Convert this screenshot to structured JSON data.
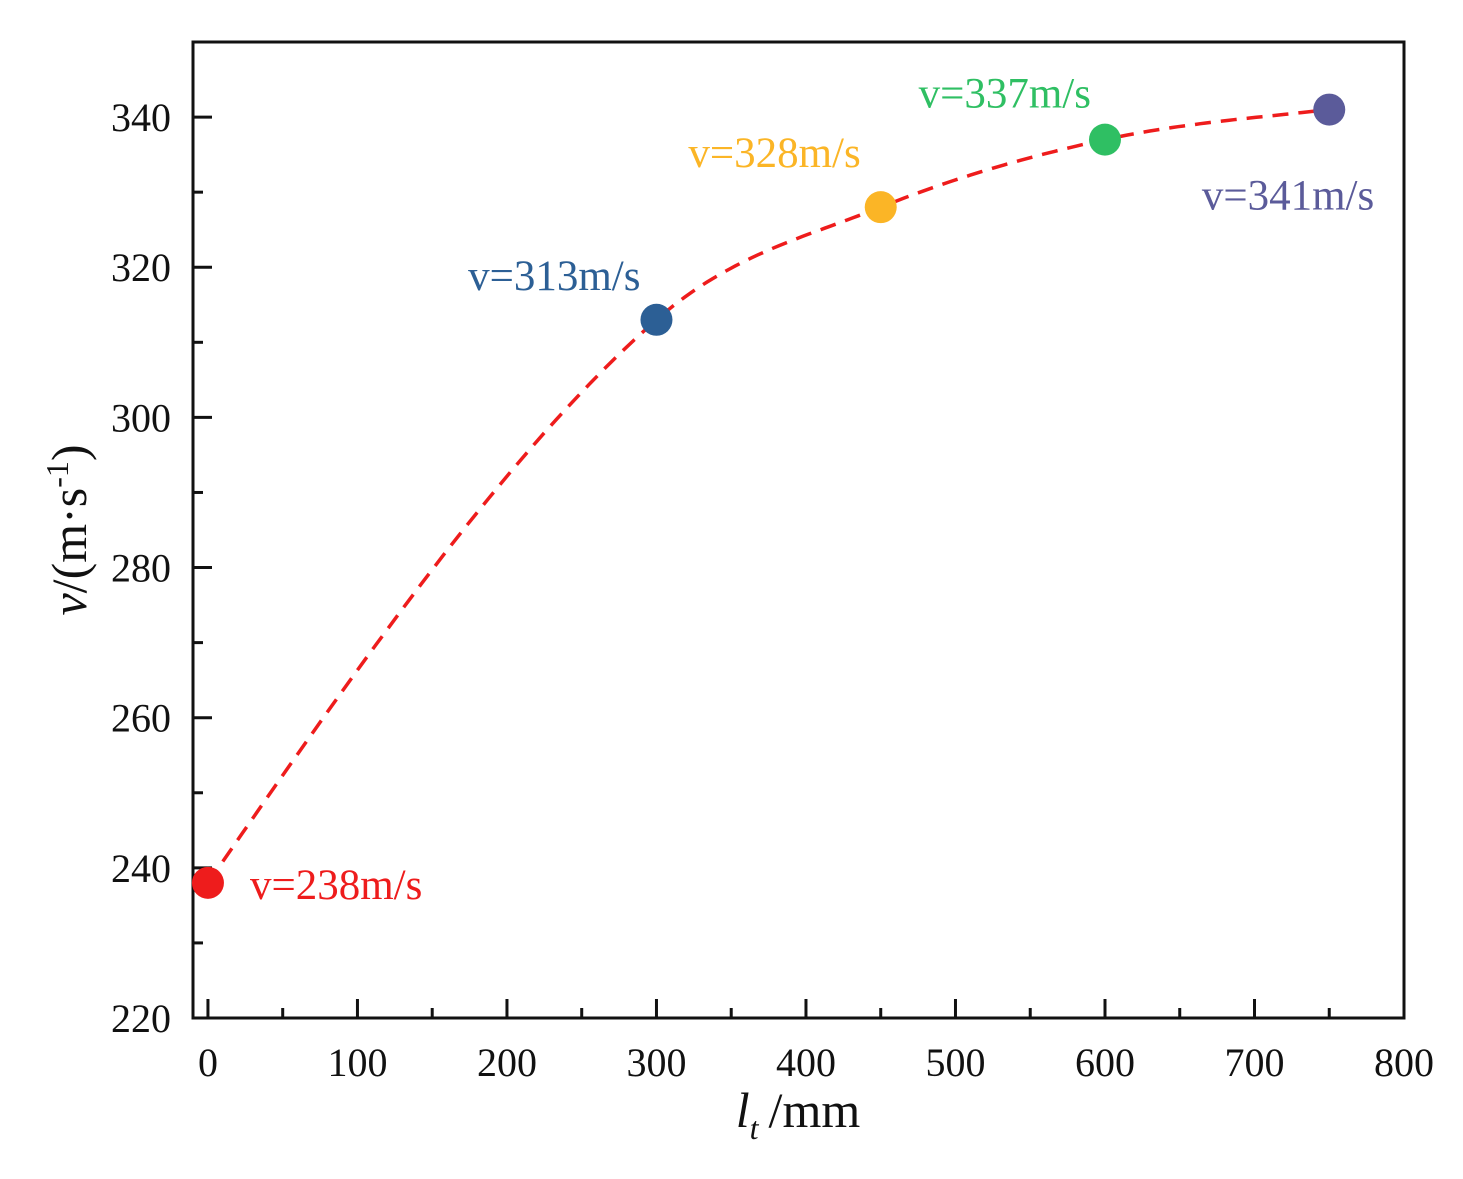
{
  "chart_data": {
    "type": "scatter",
    "xlabel": {
      "var": "l",
      "sub": "t",
      "unit": "/mm"
    },
    "ylabel": {
      "var": "v",
      "unit": "/(m·s",
      "sup": "-1",
      "close": ")"
    },
    "xlim": [
      -10,
      800
    ],
    "ylim": [
      220,
      350
    ],
    "xticks": [
      0,
      100,
      200,
      300,
      400,
      500,
      600,
      700,
      800
    ],
    "yticks": [
      220,
      240,
      260,
      280,
      300,
      320,
      340
    ],
    "xminor": [
      50,
      150,
      250,
      350,
      450,
      550,
      650,
      750
    ],
    "yminor": [
      230,
      250,
      270,
      290,
      310,
      330
    ],
    "grid": false,
    "points": [
      {
        "x": 0,
        "y": 238,
        "color": "#ee1c1c",
        "label": "v=238m/s"
      },
      {
        "x": 300,
        "y": 313,
        "color": "#2c5f95",
        "label": "v=313m/s"
      },
      {
        "x": 450,
        "y": 328,
        "color": "#fbb526",
        "label": "v=328m/s"
      },
      {
        "x": 600,
        "y": 337,
        "color": "#2fbf63",
        "label": "v=337m/s"
      },
      {
        "x": 750,
        "y": 341,
        "color": "#5b5b9a",
        "label": "v=341m/s"
      }
    ],
    "fit_curve": {
      "style": "dashed",
      "color": "#ee1c1c",
      "x_range": [
        0,
        750
      ]
    }
  }
}
